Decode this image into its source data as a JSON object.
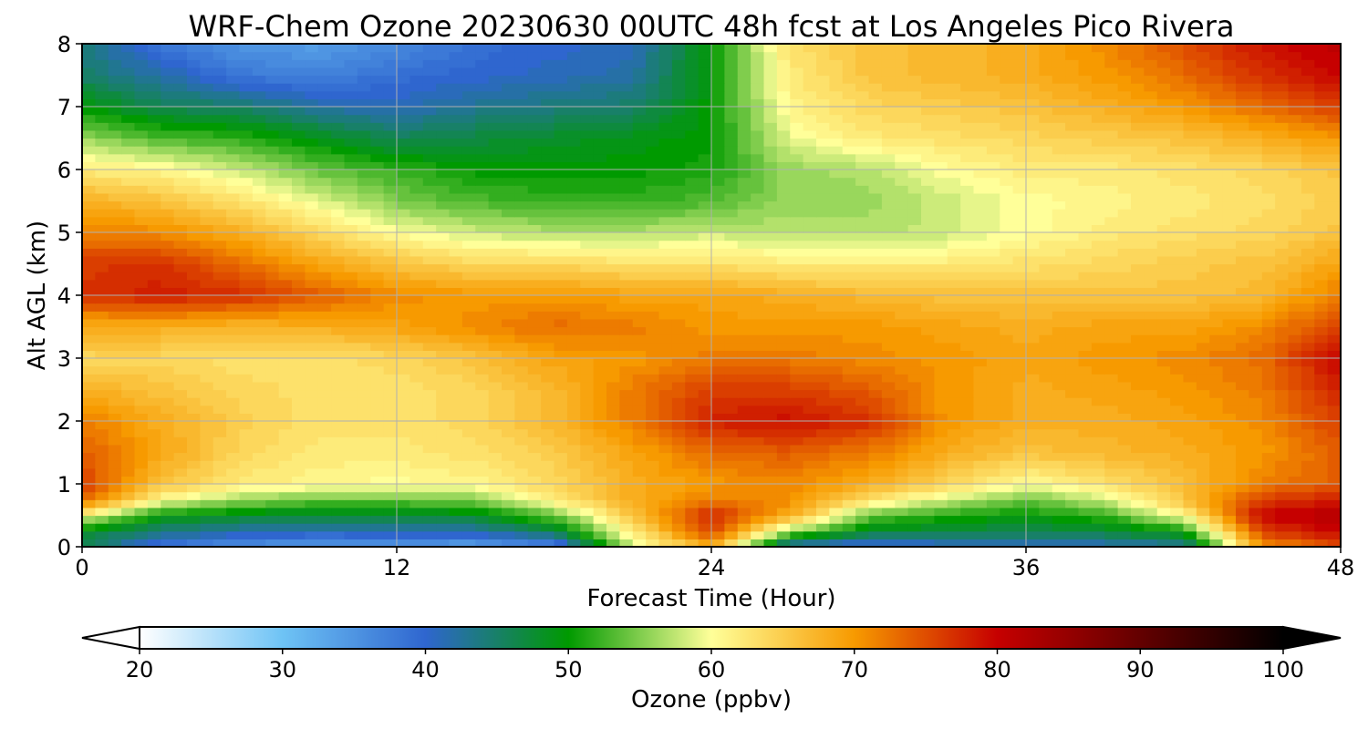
{
  "chart_data": {
    "type": "heatmap",
    "title": "WRF-Chem Ozone  20230630 00UTC 48h fcst at Los Angeles Pico Rivera",
    "xlabel": "Forecast Time (Hour)",
    "ylabel": "Alt AGL (km)",
    "xlim": [
      0,
      48
    ],
    "ylim": [
      0,
      8
    ],
    "x_ticks": [
      "0",
      "12",
      "24",
      "36",
      "48"
    ],
    "y_ticks": [
      "0",
      "1",
      "2",
      "3",
      "4",
      "5",
      "6",
      "7",
      "8"
    ],
    "grid": true,
    "colorbar": {
      "label": "Ozone  (ppbv)",
      "range": [
        20,
        100
      ],
      "ticks": [
        "20",
        "30",
        "40",
        "50",
        "60",
        "70",
        "80",
        "90",
        "100"
      ],
      "extend": "both",
      "colors": [
        "#ffffff",
        "#6ec3f5",
        "#2f66cf",
        "#009a00",
        "#ffff99",
        "#f79a00",
        "#c60000",
        "#000000"
      ],
      "stops": [
        20,
        30,
        40,
        50,
        60,
        70,
        80,
        100
      ]
    },
    "x": [
      0,
      3,
      6,
      9,
      12,
      15,
      18,
      21,
      24,
      27,
      30,
      33,
      36,
      39,
      42,
      45,
      48
    ],
    "y": [
      0,
      0.25,
      0.5,
      0.75,
      1,
      1.5,
      2,
      2.5,
      3,
      3.5,
      4,
      4.5,
      5,
      5.5,
      6,
      6.5,
      7,
      7.5,
      8
    ],
    "z": [
      [
        46,
        38,
        35,
        34,
        34,
        33,
        36,
        58,
        68,
        40,
        38,
        40,
        40,
        41,
        42,
        70,
        75
      ],
      [
        48,
        44,
        42,
        41,
        42,
        42,
        46,
        62,
        76,
        56,
        48,
        47,
        46,
        47,
        50,
        76,
        80
      ],
      [
        60,
        50,
        48,
        47,
        47,
        48,
        54,
        66,
        78,
        68,
        54,
        51,
        50,
        52,
        60,
        80,
        82
      ],
      [
        74,
        60,
        56,
        54,
        54,
        55,
        62,
        68,
        72,
        71,
        63,
        58,
        54,
        58,
        66,
        76,
        78
      ],
      [
        76,
        66,
        62,
        61,
        60,
        61,
        64,
        68,
        70,
        71,
        68,
        64,
        60,
        63,
        66,
        72,
        74
      ],
      [
        74,
        69,
        64,
        62,
        62,
        63,
        65,
        69,
        73,
        74,
        72,
        68,
        66,
        67,
        68,
        70,
        74
      ],
      [
        72,
        68,
        65,
        63,
        63,
        64,
        67,
        72,
        78,
        79,
        77,
        70,
        68,
        68,
        69,
        71,
        76
      ],
      [
        68,
        66,
        64,
        63,
        63,
        64,
        67,
        72,
        76,
        76,
        74,
        70,
        68,
        69,
        70,
        72,
        78
      ],
      [
        64,
        64,
        63,
        63,
        64,
        66,
        69,
        70,
        72,
        72,
        71,
        70,
        69,
        70,
        71,
        73,
        80
      ],
      [
        68,
        68,
        67,
        68,
        69,
        71,
        73,
        72,
        70,
        70,
        70,
        69,
        68,
        69,
        69,
        71,
        76
      ],
      [
        77,
        78,
        77,
        74,
        71,
        70,
        70,
        69,
        69,
        68,
        67,
        66,
        66,
        66,
        66,
        67,
        72
      ],
      [
        76,
        77,
        73,
        69,
        66,
        64,
        64,
        63,
        63,
        62,
        62,
        62,
        63,
        64,
        65,
        66,
        69
      ],
      [
        72,
        71,
        68,
        64,
        60,
        58,
        57,
        57,
        58,
        57,
        57,
        58,
        60,
        62,
        63,
        64,
        66
      ],
      [
        68,
        66,
        63,
        59,
        55,
        53,
        52,
        52,
        53,
        56,
        56,
        58,
        60,
        61,
        62,
        63,
        65
      ],
      [
        62,
        61,
        58,
        54,
        52,
        50,
        50,
        50,
        51,
        56,
        57,
        60,
        62,
        62,
        63,
        64,
        66
      ],
      [
        56,
        53,
        52,
        49,
        46,
        47,
        48,
        49,
        50,
        59,
        62,
        63,
        64,
        65,
        66,
        68,
        70
      ],
      [
        50,
        46,
        45,
        42,
        41,
        43,
        44,
        45,
        50,
        61,
        64,
        65,
        66,
        68,
        70,
        73,
        76
      ],
      [
        45,
        42,
        38,
        37,
        39,
        40,
        41,
        42,
        50,
        62,
        66,
        67,
        68,
        70,
        73,
        77,
        80
      ],
      [
        44,
        38,
        35,
        34,
        36,
        39,
        40,
        41,
        50,
        63,
        66,
        67,
        68,
        71,
        75,
        79,
        81
      ]
    ]
  }
}
